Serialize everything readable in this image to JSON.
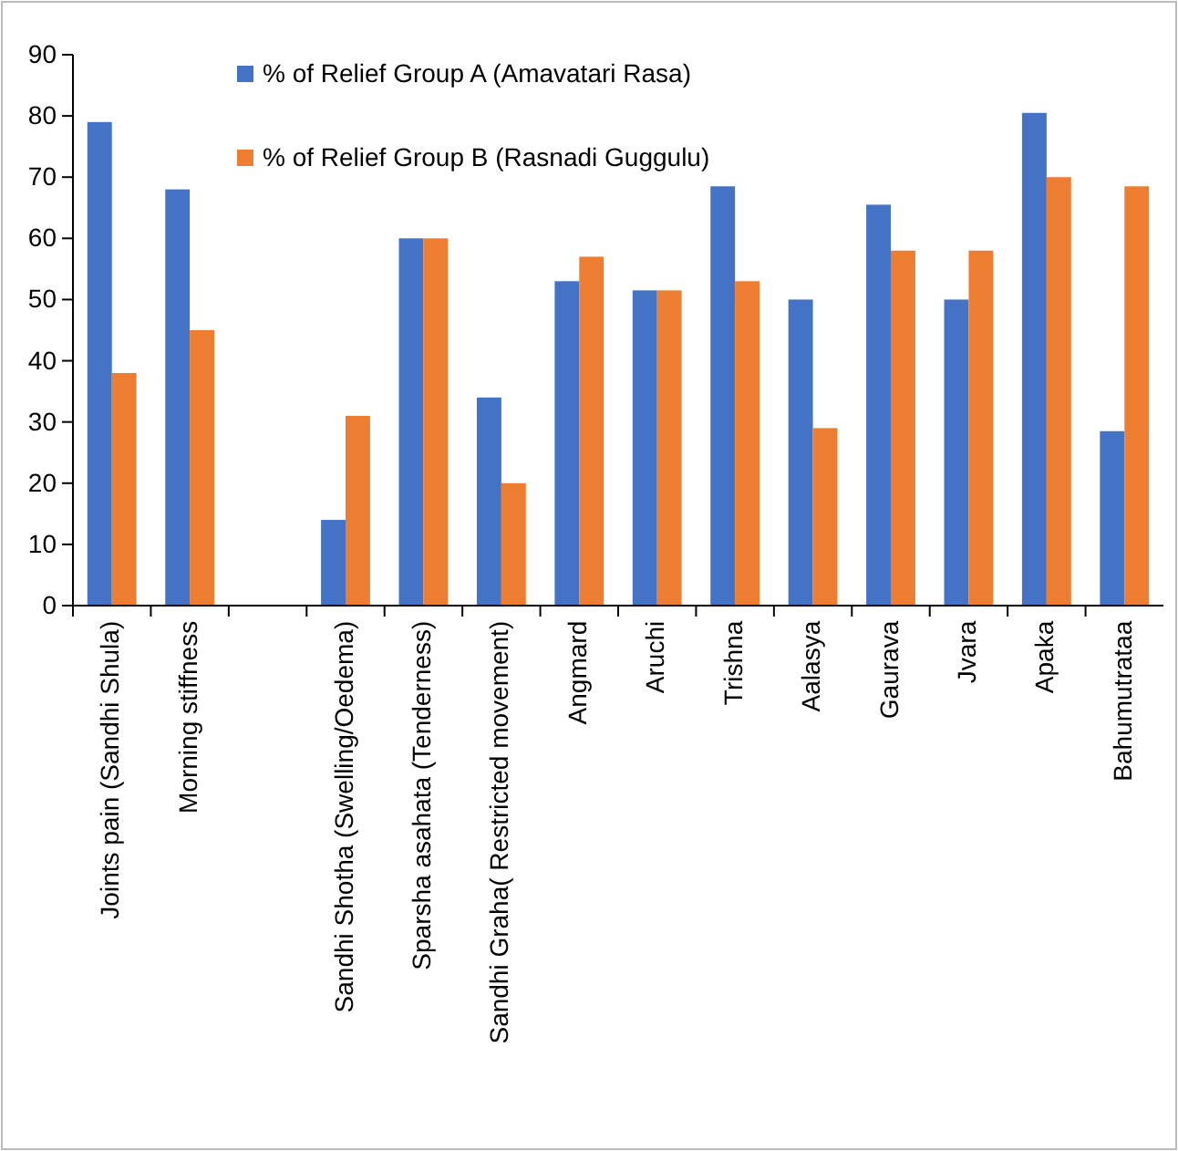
{
  "chart_data": {
    "type": "bar",
    "categories": [
      "Joints pain (Sandhi Shula)",
      "Morning stiffness",
      null,
      "Sandhi Shotha (Swelling/Oedema)",
      "Sparsha asahata (Tenderness)",
      "Sandhi Graha( Restricted movement)",
      "Angmard",
      "Aruchi",
      "Trishna",
      "Aalasya",
      "Gaurava",
      "Jvara",
      "Apaka",
      "Bahumutrataa"
    ],
    "series": [
      {
        "name": "% of Relief Group A (Amavatari Rasa)",
        "color": "#4472c4",
        "values": [
          79,
          68,
          null,
          14,
          60,
          34,
          53,
          51.5,
          68.5,
          50,
          65.5,
          50,
          80.5,
          28.5
        ]
      },
      {
        "name": "% of Relief Group B (Rasnadi Guggulu)",
        "color": "#ed7d31",
        "values": [
          38,
          45,
          null,
          31,
          60,
          20,
          57,
          51.5,
          53,
          29,
          58,
          58,
          70,
          68.5
        ]
      }
    ],
    "ylim": [
      0,
      90
    ],
    "yticks": [
      0,
      10,
      20,
      30,
      40,
      50,
      60,
      70,
      80,
      90
    ],
    "grid": false,
    "legend": "top left"
  }
}
